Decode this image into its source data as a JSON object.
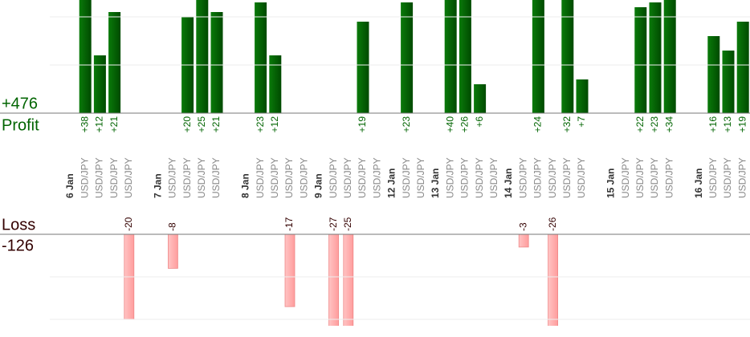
{
  "chart_data": {
    "type": "bar",
    "series": [
      {
        "name": "Profit",
        "total": "+476",
        "color": "#006400",
        "ylim": [
          0,
          23.5
        ],
        "yticks": [
          0,
          10,
          20
        ]
      },
      {
        "name": "Loss",
        "total": "-126",
        "color": "#ffaaaa",
        "ylim": [
          -21.5,
          0
        ],
        "yticks": [
          -20,
          -10,
          0
        ]
      }
    ],
    "groups": [
      {
        "date": "6 Jan",
        "categories": [
          "USD/JPY",
          "USD/JPY",
          "USD/JPY",
          "USD/JPY"
        ],
        "profit": [
          38,
          12,
          21,
          null
        ],
        "profit_labels": [
          "+38",
          "+12",
          "+21",
          null
        ],
        "loss": [
          null,
          null,
          null,
          -20
        ]
      },
      {
        "date": "7 Jan",
        "categories": [
          "USD/JPY",
          "USD/JPY",
          "USD/JPY",
          "USD/JPY"
        ],
        "profit": [
          null,
          20,
          25,
          21
        ],
        "profit_labels": [
          null,
          "+20",
          "+25",
          "+21"
        ],
        "loss": [
          -8,
          null,
          null,
          null
        ]
      },
      {
        "date": "8 Jan",
        "categories": [
          "USD/JPY",
          "USD/JPY",
          "USD/JPY",
          "USD/JPY"
        ],
        "profit": [
          23,
          12,
          null,
          null
        ],
        "profit_labels": [
          "+23",
          "+12",
          null,
          null
        ],
        "loss": [
          null,
          null,
          -17,
          null
        ]
      },
      {
        "date": "9 Jan",
        "categories": [
          "USD/JPY",
          "USD/JPY",
          "USD/JPY",
          "USD/JPY"
        ],
        "profit": [
          null,
          null,
          19,
          null
        ],
        "profit_labels": [
          null,
          null,
          "+19",
          null
        ],
        "loss": [
          -27,
          -25,
          null,
          null
        ]
      },
      {
        "date": "12 Jan",
        "categories": [
          "USD/JPY",
          "USD/JPY"
        ],
        "profit": [
          23,
          null
        ],
        "profit_labels": [
          "+23",
          null
        ],
        "loss": [
          null,
          null
        ]
      },
      {
        "date": "13 Jan",
        "categories": [
          "USD/JPY",
          "USD/JPY",
          "USD/JPY",
          "USD/JPY"
        ],
        "profit": [
          40,
          26,
          6,
          null
        ],
        "profit_labels": [
          "+40",
          "+26",
          "+6",
          null
        ],
        "loss": [
          null,
          null,
          null,
          null
        ]
      },
      {
        "date": "14 Jan",
        "categories": [
          "USD/JPY",
          "USD/JPY",
          "USD/JPY",
          "USD/JPY",
          "USD/JPY"
        ],
        "profit": [
          null,
          24,
          null,
          32,
          7
        ],
        "profit_labels": [
          null,
          "+24",
          null,
          "+32",
          "+7"
        ],
        "loss": [
          -3,
          null,
          -26,
          null,
          null
        ]
      },
      {
        "date": "15 Jan",
        "categories": [
          "USD/JPY",
          "USD/JPY",
          "USD/JPY",
          "USD/JPY"
        ],
        "profit": [
          null,
          22,
          23,
          34
        ],
        "profit_labels": [
          null,
          "+22",
          "+23",
          "+34"
        ],
        "loss": [
          null,
          null,
          null,
          null
        ]
      },
      {
        "date": "16 Jan",
        "categories": [
          "USD/JPY",
          "USD/JPY",
          "USD/JPY"
        ],
        "profit": [
          16,
          13,
          19
        ],
        "profit_labels": [
          "+16",
          "+13",
          "+19"
        ],
        "loss": [
          null,
          null,
          null
        ]
      }
    ]
  }
}
